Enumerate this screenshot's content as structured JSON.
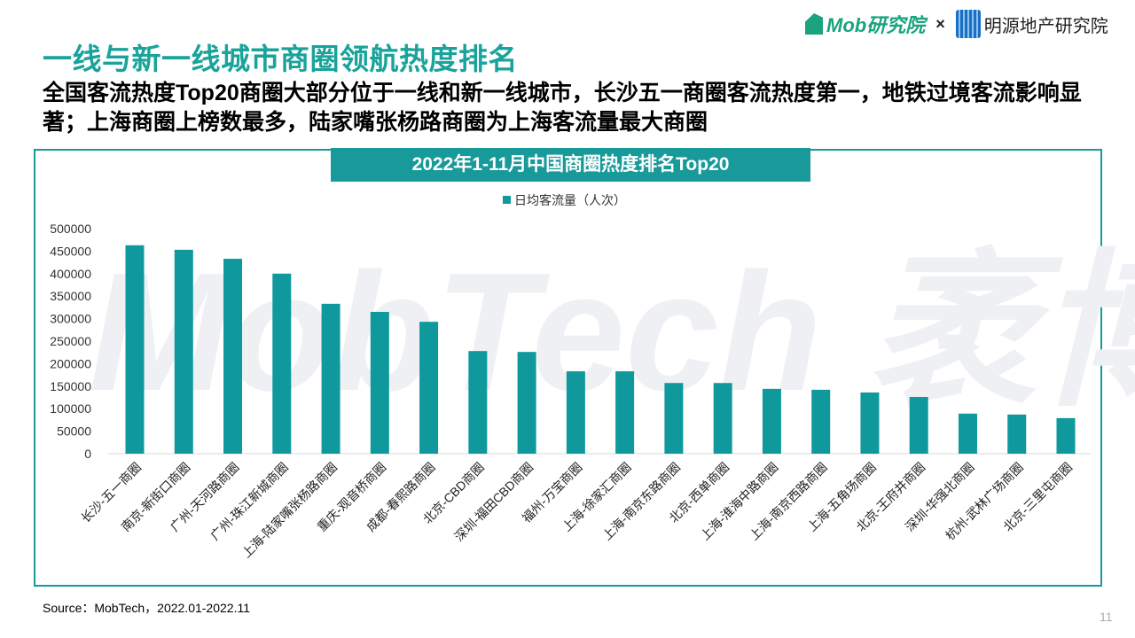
{
  "header": {
    "title": "一线与新一线城市商圈领航热度排名",
    "subtitle": "全国客流热度Top20商圈大部分位于一线和新一线城市，长沙五一商圈客流热度第一，地铁过境客流影响显著；上海商圈上榜数最多，陆家嘴张杨路商圈为上海客流量最大商圈",
    "logo_left": "Mob研究院",
    "logo_sep": "×",
    "logo_right": "明源地产研究院"
  },
  "watermark": "MobTech 袤博",
  "chart_data": {
    "type": "bar",
    "title": "2022年1-11月中国商圈热度排名Top20",
    "legend_position": "top",
    "ylim": [
      0,
      500000
    ],
    "yticks": [
      0,
      50000,
      100000,
      150000,
      200000,
      250000,
      300000,
      350000,
      400000,
      450000,
      500000
    ],
    "grid": false,
    "color": "#0f999c",
    "categories": [
      "长沙-五一商圈",
      "南京-新街口商圈",
      "广州-天河路商圈",
      "广州-珠江新城商圈",
      "上海-陆家嘴张杨路商圈",
      "重庆-观音桥商圈",
      "成都-春熙路商圈",
      "北京-CBD商圈",
      "深圳-福田CBD商圈",
      "福州-万宝商圈",
      "上海-徐家汇商圈",
      "上海-南京东路商圈",
      "北京-西单商圈",
      "上海-淮海中路商圈",
      "上海-南京西路商圈",
      "上海-五角场商圈",
      "北京-王府井商圈",
      "深圳-华强北商圈",
      "杭州-武林广场商圈",
      "北京-三里屯商圈"
    ],
    "series": [
      {
        "name": "日均客流量（人次）",
        "values": [
          463000,
          453000,
          433000,
          400000,
          333000,
          315000,
          293000,
          228000,
          226000,
          183000,
          183000,
          157000,
          157000,
          144000,
          142000,
          136000,
          126000,
          89000,
          87000,
          79000
        ]
      }
    ]
  },
  "footer": {
    "source": "Source：MobTech，2022.01-2022.11",
    "page": "11"
  }
}
